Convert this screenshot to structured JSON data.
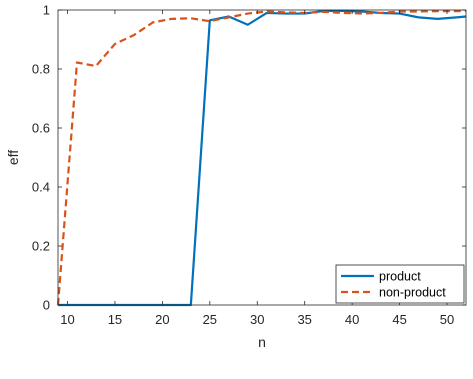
{
  "chart_data": {
    "type": "line",
    "xlabel": "n",
    "ylabel": "eff",
    "xlim": [
      9,
      52
    ],
    "ylim": [
      0,
      1
    ],
    "xticks": [
      10,
      15,
      20,
      25,
      30,
      35,
      40,
      45,
      50
    ],
    "yticks": [
      0,
      0.2,
      0.4,
      0.6,
      0.8,
      1
    ],
    "ytick_labels": [
      "0",
      "0.2",
      "0.4",
      "0.6",
      "0.8",
      "1"
    ],
    "grid": false,
    "legend_position": "bottom-right",
    "series": [
      {
        "name": "product",
        "style": "solid",
        "color": "#0072BD",
        "x": [
          9,
          11,
          13,
          15,
          17,
          19,
          21,
          23,
          25,
          27,
          29,
          31,
          33,
          35,
          37,
          39,
          41,
          43,
          45,
          47,
          49,
          51,
          52
        ],
        "y": [
          0,
          0,
          0,
          0,
          0,
          0,
          0,
          0,
          0.965,
          0.978,
          0.95,
          0.99,
          0.988,
          0.988,
          0.997,
          0.997,
          0.995,
          0.99,
          0.988,
          0.975,
          0.97,
          0.975,
          0.978
        ]
      },
      {
        "name": "non-product",
        "style": "dashed",
        "color": "#D95319",
        "x": [
          9,
          11,
          13,
          15,
          17,
          19,
          21,
          23,
          25,
          27,
          29,
          31,
          33,
          35,
          37,
          39,
          41,
          43,
          45,
          47,
          49,
          51,
          52
        ],
        "y": [
          0,
          0.822,
          0.81,
          0.885,
          0.915,
          0.958,
          0.97,
          0.972,
          0.962,
          0.975,
          0.988,
          0.995,
          0.992,
          0.99,
          0.994,
          0.99,
          0.988,
          0.99,
          0.995,
          0.995,
          0.996,
          0.996,
          0.997
        ]
      }
    ]
  }
}
